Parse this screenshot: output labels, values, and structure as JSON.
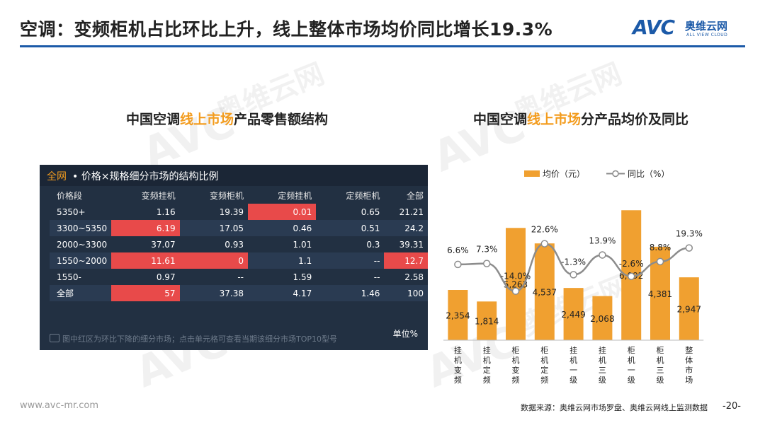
{
  "header": {
    "title": "空调：变频柜机占比环比上升，线上整体市场均价同比增长19.3%",
    "logo_avc": "AVC",
    "logo_cn": "奥维云网",
    "logo_en": "ALL VIEW CLOUD"
  },
  "watermark": {
    "text_cn": "奥维云网",
    "text_en": "ALL VIEW CLOUD",
    "text_avc": "AVC"
  },
  "left": {
    "subtitle_pre": "中国空调",
    "subtitle_hl": "线上市场",
    "subtitle_post": "产品零售额结构",
    "panel_title_hl": "全网",
    "panel_title": "• 价格×规格细分市场的结构比例",
    "columns": [
      "价格段",
      "变频挂机",
      "变频柜机",
      "定频挂机",
      "定频柜机",
      "全部"
    ],
    "rows": [
      {
        "cells": [
          "5350+",
          "1.16",
          "19.39",
          "0.01",
          "0.65",
          "21.21"
        ],
        "red": [
          3
        ]
      },
      {
        "cells": [
          "3300~5350",
          "6.19",
          "17.05",
          "0.46",
          "0.51",
          "24.2"
        ],
        "red": [
          1
        ]
      },
      {
        "cells": [
          "2000~3300",
          "37.07",
          "0.93",
          "1.01",
          "0.3",
          "39.31"
        ],
        "red": []
      },
      {
        "cells": [
          "1550~2000",
          "11.61",
          "0",
          "1.1",
          "--",
          "12.7"
        ],
        "red": [
          1,
          2,
          5
        ]
      },
      {
        "cells": [
          "1550-",
          "0.97",
          "--",
          "1.59",
          "--",
          "2.58"
        ],
        "red": []
      },
      {
        "cells": [
          "全部",
          "57",
          "37.38",
          "4.17",
          "1.46",
          "100"
        ],
        "red": [
          1
        ]
      }
    ],
    "note": "图中红区为环比下降的细分市场；点击单元格可查看当期该细分市场TOP10型号",
    "unit": "单位%",
    "colors": {
      "red": "#e84a4a",
      "orange": "#f39c1e",
      "panel": "#223042"
    }
  },
  "right": {
    "subtitle_pre": "中国空调",
    "subtitle_hl": "线上市场",
    "subtitle_post": "分产品均价及同比"
  },
  "chart_data": {
    "type": "bar",
    "categories": [
      "挂机变频",
      "挂机定频",
      "柜机变频",
      "柜机定频",
      "挂机一级",
      "挂机三级",
      "柜机一级",
      "柜机三级",
      "整体市场"
    ],
    "series": [
      {
        "name": "均价（元）",
        "type": "bar",
        "values": [
          2354,
          1814,
          5263,
          4537,
          2449,
          2068,
          6092,
          4381,
          2947
        ],
        "labels": [
          "2,354",
          "1,814",
          "5,263",
          "4,537",
          "2,449",
          "2,068",
          "6,092",
          "4,381",
          "2,947"
        ],
        "color": "#f0a030"
      },
      {
        "name": "同比（%）",
        "type": "line",
        "values": [
          6.6,
          7.3,
          -14.0,
          22.6,
          -1.3,
          13.9,
          -2.6,
          8.8,
          19.3
        ],
        "labels": [
          "6.6%",
          "7.3%",
          "-14.0%",
          "22.6%",
          "-1.3%",
          "13.9%",
          "-2.6%",
          "8.8%",
          "19.3%"
        ],
        "color": "#8c8c8c"
      }
    ],
    "bar_ylim": [
      0,
      6300
    ],
    "line_ylim": [
      -30,
      60
    ],
    "legend_position": "top"
  },
  "footer": {
    "website": "www.avc-mr.com",
    "source": "数据来源：奥维云网市场罗盘、奥维云网线上监测数据",
    "page": "-20-"
  }
}
